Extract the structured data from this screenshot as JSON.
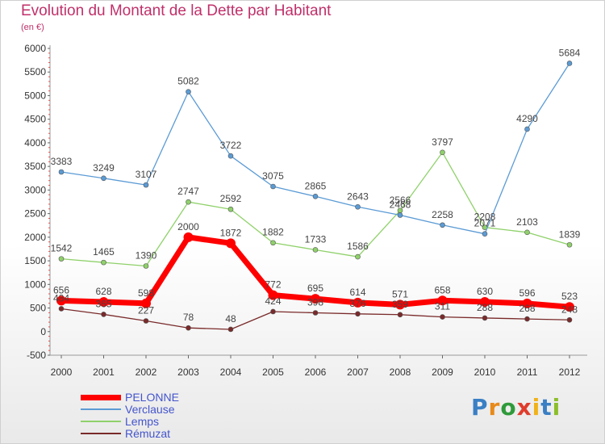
{
  "title": "Evolution du Montant de la Dette par Habitant",
  "subtitle": "(en €)",
  "logo": {
    "text": "Proxiti",
    "letters": [
      "P",
      "r",
      "o",
      "x",
      "i",
      "t",
      "i"
    ],
    "colors": [
      "#3a7fc4",
      "#e88a1a",
      "#2f9a3a",
      "#e03c2c",
      "#f0b21a",
      "#3a7fc4",
      "#8cbe2a"
    ]
  },
  "chart_data": {
    "type": "line",
    "x": [
      "2000",
      "2001",
      "2002",
      "2003",
      "2004",
      "2005",
      "2006",
      "2007",
      "2008",
      "2009",
      "2010",
      "2011",
      "2012"
    ],
    "ylim": [
      -500,
      6000
    ],
    "yticks": [
      -500,
      0,
      500,
      1000,
      1500,
      2000,
      2500,
      3000,
      3500,
      4000,
      4500,
      5000,
      5500,
      6000
    ],
    "grid": false,
    "legend_position": "bottom-left",
    "series": [
      {
        "name": "PELONNE",
        "color": "#ff0000",
        "values": [
          656,
          628,
          598,
          2000,
          1872,
          772,
          695,
          614,
          571,
          658,
          630,
          596,
          523
        ]
      },
      {
        "name": "Verclause",
        "color": "#5b9bd5",
        "values": [
          3383,
          3249,
          3107,
          5082,
          3722,
          3075,
          2865,
          2643,
          2468,
          2258,
          2071,
          4290,
          5684
        ]
      },
      {
        "name": "Lemps",
        "color": "#8fd16a",
        "values": [
          1542,
          1465,
          1390,
          2747,
          2592,
          1882,
          1733,
          1586,
          2566,
          3797,
          2208,
          2103,
          1839
        ]
      },
      {
        "name": "Rémuzat",
        "color": "#7a2a2a",
        "values": [
          484,
          365,
          227,
          78,
          48,
          424,
          398,
          376,
          359,
          311,
          288,
          268,
          248
        ]
      }
    ]
  }
}
